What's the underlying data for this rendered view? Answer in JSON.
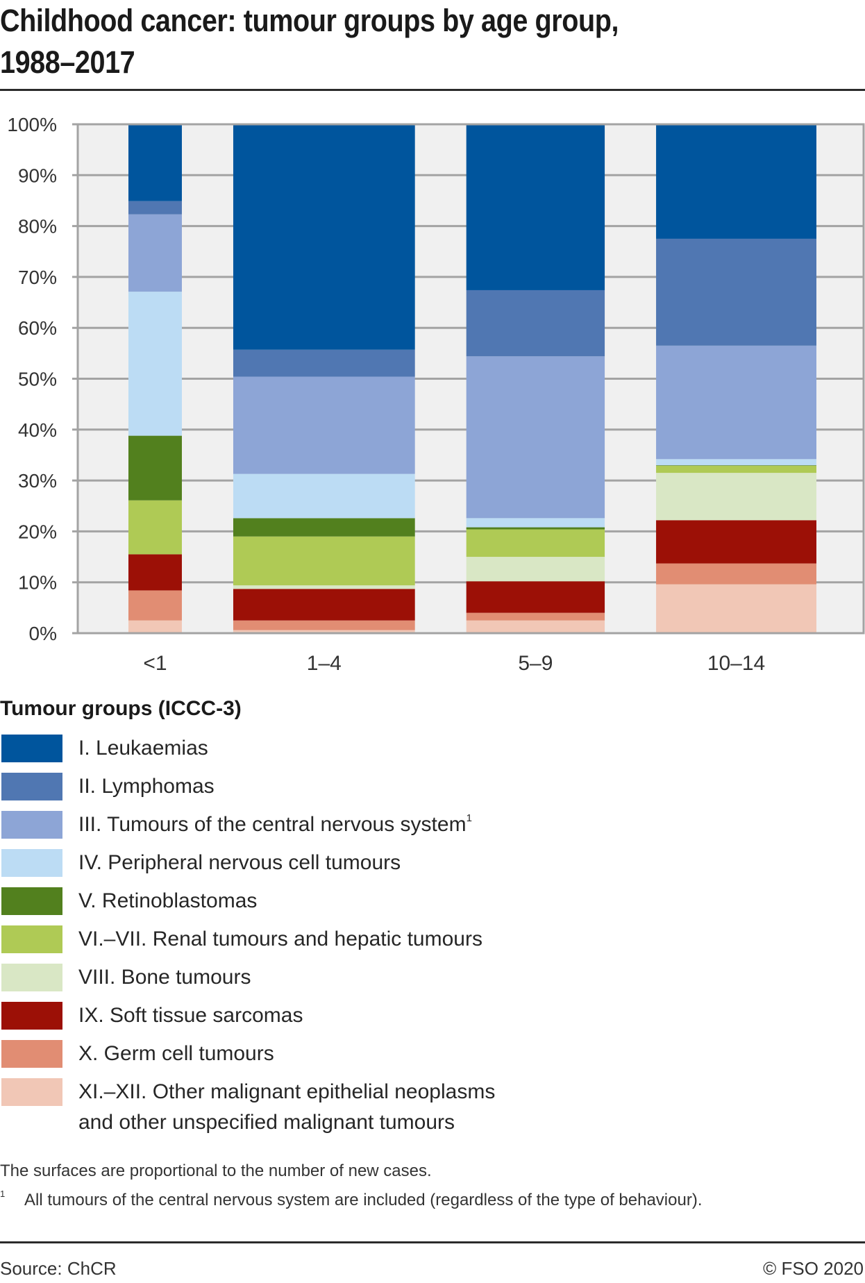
{
  "title_line1": "Childhood cancer: tumour groups by age group,",
  "title_line2": "1988–2017",
  "legend_title": "Tumour groups (ICCC-3)",
  "note": "The surfaces are proportional to the number of new cases.",
  "footnote_mark": "1",
  "footnote": "All tumours of the central nervous system are included (regardless of the type of behaviour).",
  "source": "Source: ChCR",
  "copyright": "© FSO 2020",
  "chart_data": {
    "type": "bar",
    "stacked": true,
    "variable_width": true,
    "title": "Childhood cancer: tumour groups by age group, 1988–2017",
    "xlabel": "",
    "ylabel": "",
    "ylim": [
      0,
      100
    ],
    "y_ticks": [
      "0%",
      "10%",
      "20%",
      "30%",
      "40%",
      "50%",
      "60%",
      "70%",
      "80%",
      "90%",
      "100%"
    ],
    "y_tick_values": [
      0,
      10,
      20,
      30,
      40,
      50,
      60,
      70,
      80,
      90,
      100
    ],
    "grid": true,
    "categories": [
      "<1",
      "1–4",
      "5–9",
      "10–14"
    ],
    "category_width_share_pct": [
      10.0,
      34.0,
      25.9,
      30.0
    ],
    "legend_position": "bottom",
    "series": [
      {
        "name": "I. Leukaemias",
        "color": "#00559d",
        "values": [
          15.1,
          44.3,
          32.6,
          22.5
        ]
      },
      {
        "name": "II. Lymphomas",
        "color": "#5077b2",
        "values": [
          2.6,
          5.3,
          13.0,
          21.0
        ]
      },
      {
        "name": "III. Tumours of the central nervous system",
        "footnote": "1",
        "color": "#8da5d6",
        "values": [
          15.2,
          19.1,
          31.8,
          22.3
        ]
      },
      {
        "name": "IV. Peripheral nervous cell tumours",
        "color": "#bcdcf4",
        "values": [
          28.3,
          8.7,
          1.8,
          1.2
        ]
      },
      {
        "name": "V. Retinoblastomas",
        "color": "#52801e",
        "values": [
          12.7,
          3.6,
          0.4,
          0.1
        ]
      },
      {
        "name": "VI.–VII. Renal tumours and hepatic tumours",
        "color": "#afca55",
        "values": [
          10.6,
          9.6,
          5.4,
          1.4
        ]
      },
      {
        "name": "VIII. Bone tumours",
        "color": "#d9e7c5",
        "values": [
          0.0,
          0.7,
          4.8,
          9.3
        ]
      },
      {
        "name": "IX. Soft tissue sarcomas",
        "color": "#9c1006",
        "values": [
          7.1,
          6.2,
          6.2,
          8.5
        ]
      },
      {
        "name": "X. Germ cell tumours",
        "color": "#e18d73",
        "values": [
          5.9,
          1.9,
          1.5,
          4.1
        ]
      },
      {
        "name": "XI.–XII. Other malignant epithelial neoplasms and other unspecified malignant tumours",
        "label_line1": "XI.–XII. Other malignant epithelial neoplasms",
        "label_line2": "and other unspecified malignant tumours",
        "color": "#f1c7b6",
        "values": [
          2.5,
          0.6,
          2.5,
          9.6
        ]
      }
    ],
    "colors": {
      "plot_background": "#f0f0f0",
      "grid": "#a3a3a3"
    }
  }
}
